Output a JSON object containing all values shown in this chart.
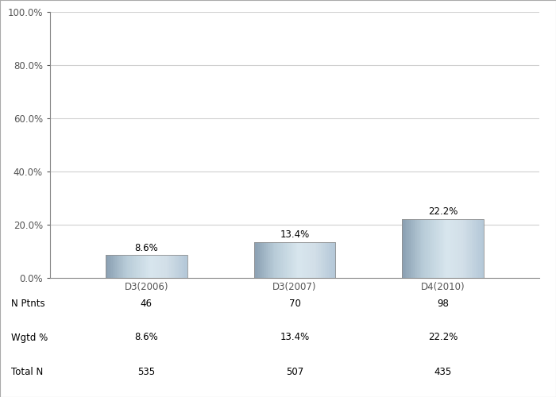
{
  "categories": [
    "D3(2006)",
    "D3(2007)",
    "D4(2010)"
  ],
  "values": [
    8.6,
    13.4,
    22.2
  ],
  "value_labels": [
    "8.6%",
    "13.4%",
    "22.2%"
  ],
  "ylim": [
    0,
    100
  ],
  "yticks": [
    0,
    20,
    40,
    60,
    80,
    100
  ],
  "ytick_labels": [
    "0.0%",
    "20.0%",
    "40.0%",
    "60.0%",
    "80.0%",
    "100.0%"
  ],
  "background_color": "#ffffff",
  "grid_color": "#d0d0d0",
  "table_row_labels": [
    "N Ptnts",
    "Wgtd %",
    "Total N"
  ],
  "table_data": [
    [
      "46",
      "70",
      "98"
    ],
    [
      "8.6%",
      "13.4%",
      "22.2%"
    ],
    [
      "535",
      "507",
      "435"
    ]
  ],
  "bar_width": 0.55,
  "label_fontsize": 8.5,
  "tick_fontsize": 8.5,
  "table_fontsize": 8.5,
  "bar_grad_colors": [
    [
      "#8a9fb2",
      "#c5d6e2",
      "#d8e6ee",
      "#b8ccd8"
    ],
    [
      "#8a9fb2",
      "#c5d6e2",
      "#d8e6ee",
      "#b8ccd8"
    ],
    [
      "#8a9fb2",
      "#c5d6e2",
      "#d8e6ee",
      "#b8ccd8"
    ]
  ]
}
